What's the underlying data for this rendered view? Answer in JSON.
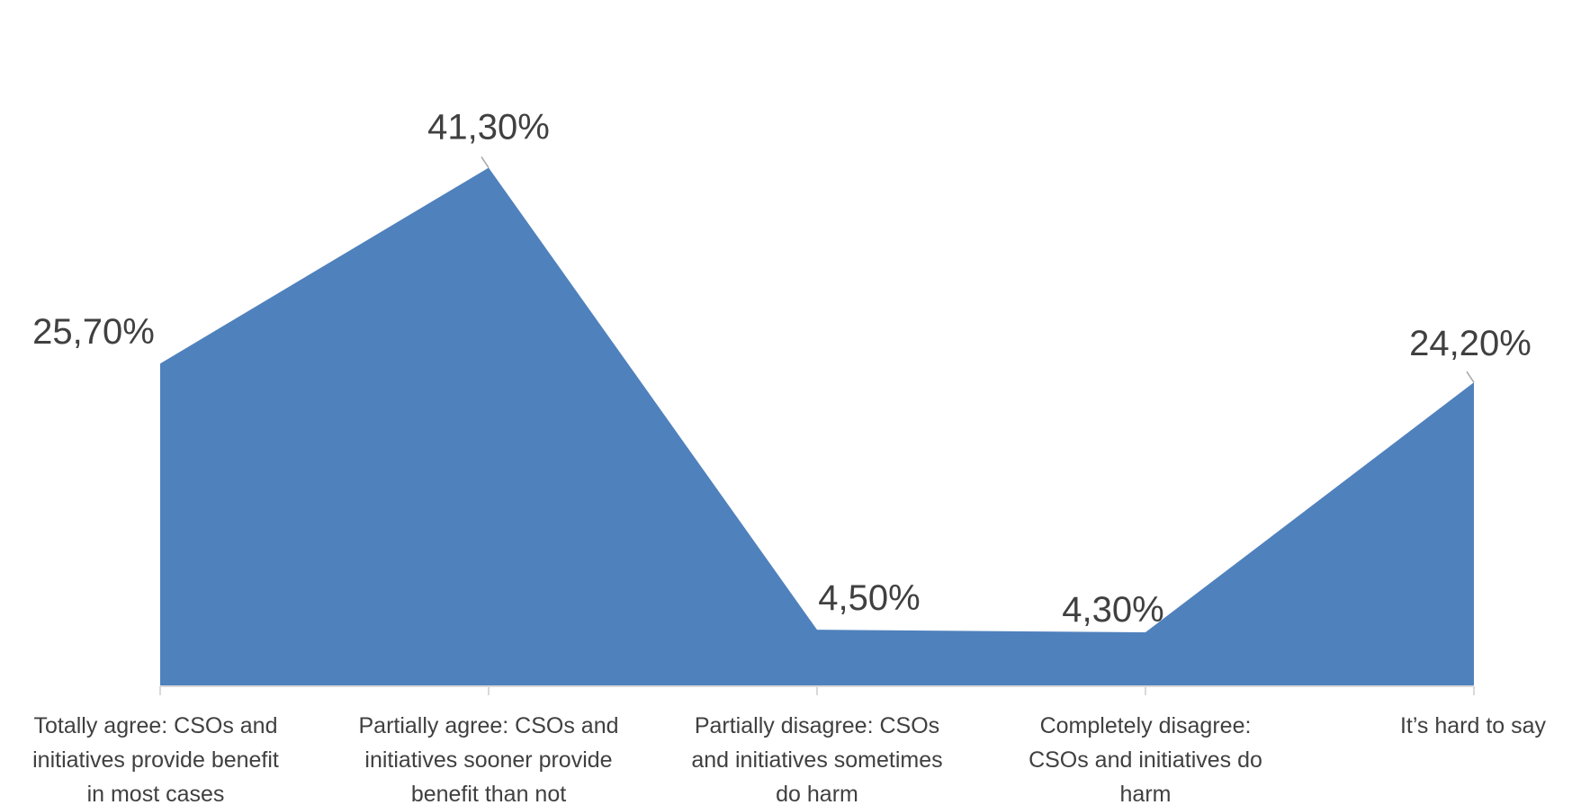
{
  "chart_data": {
    "type": "area",
    "title": "",
    "xlabel": "",
    "ylabel": "",
    "categories": [
      [
        "Totally agree: CSOs and",
        "initiatives provide benefit",
        "in most cases"
      ],
      [
        "Partially agree: CSOs and",
        "initiatives sooner provide",
        "benefit than not"
      ],
      [
        "Partially disagree: CSOs",
        "and initiatives sometimes",
        "do harm"
      ],
      [
        "Completely disagree:",
        "CSOs and initiatives do",
        "harm"
      ],
      [
        "It’s hard to say"
      ]
    ],
    "values": [
      25.7,
      41.3,
      4.5,
      4.3,
      24.2
    ],
    "value_labels": [
      "25,70%",
      "41,30%",
      "4,50%",
      "4,30%",
      "24,20%"
    ],
    "ylim": [
      0,
      45
    ],
    "grid": false,
    "legend": "none",
    "colors": {
      "fill": "#4F81BD",
      "axis": "#D9D9D9",
      "text": "#404040",
      "leader": "#A6A6A6"
    }
  }
}
